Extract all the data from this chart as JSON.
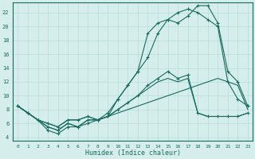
{
  "title": "",
  "xlabel": "Humidex (Indice chaleur)",
  "ylabel": "",
  "xlim": [
    -0.5,
    23.5
  ],
  "ylim": [
    3.5,
    23.5
  ],
  "yticks": [
    4,
    6,
    8,
    10,
    12,
    14,
    16,
    18,
    20,
    22
  ],
  "xticks": [
    0,
    1,
    2,
    3,
    4,
    5,
    6,
    7,
    8,
    9,
    10,
    11,
    12,
    13,
    14,
    15,
    16,
    17,
    18,
    19,
    20,
    21,
    22,
    23
  ],
  "bg_color": "#d5eeeb",
  "line_color": "#1a6b60",
  "grid_color": "#b8ddd9",
  "series1_x": [
    0,
    1,
    2,
    3,
    4,
    5,
    6,
    7,
    8,
    9,
    10,
    11,
    12,
    13,
    14,
    15,
    16,
    17,
    18,
    19,
    20,
    21,
    22,
    23
  ],
  "series1_y": [
    8.5,
    7.5,
    6.5,
    6.0,
    5.5,
    6.5,
    6.5,
    7.0,
    6.5,
    7.0,
    7.5,
    8.0,
    8.5,
    9.0,
    9.5,
    10.0,
    10.5,
    11.0,
    11.5,
    12.0,
    12.5,
    12.0,
    11.5,
    8.0
  ],
  "series2_x": [
    0,
    1,
    2,
    3,
    4,
    5,
    6,
    7,
    8,
    9,
    10,
    11,
    12,
    13,
    14,
    15,
    16,
    17,
    18,
    19,
    20,
    21,
    22,
    23
  ],
  "series2_y": [
    8.5,
    7.5,
    6.5,
    6.0,
    5.5,
    6.5,
    6.5,
    7.0,
    6.5,
    7.5,
    9.5,
    11.5,
    13.5,
    19.0,
    20.5,
    21.0,
    20.5,
    21.5,
    23.0,
    23.0,
    20.5,
    13.5,
    12.0,
    8.5
  ],
  "series3_x": [
    0,
    1,
    2,
    3,
    4,
    5,
    6,
    7,
    8,
    9,
    10,
    11,
    12,
    13,
    14,
    15,
    16,
    17,
    18,
    19,
    20,
    21,
    22,
    23
  ],
  "series3_y": [
    8.5,
    7.5,
    6.5,
    5.0,
    4.5,
    5.5,
    5.5,
    6.0,
    6.5,
    7.0,
    9.5,
    11.5,
    13.5,
    15.5,
    19.0,
    21.0,
    22.0,
    22.5,
    22.0,
    21.0,
    20.0,
    12.0,
    9.5,
    8.5
  ],
  "series4_x": [
    0,
    1,
    2,
    3,
    4,
    5,
    6,
    7,
    8,
    9,
    10,
    11,
    12,
    13,
    14,
    15,
    16,
    17,
    18,
    19,
    20,
    21,
    22,
    23
  ],
  "series4_y": [
    8.5,
    7.5,
    6.5,
    5.5,
    5.0,
    6.0,
    5.5,
    6.5,
    6.5,
    7.0,
    8.0,
    9.0,
    10.0,
    11.5,
    12.5,
    13.5,
    12.5,
    13.0,
    7.5,
    7.0,
    7.0,
    7.0,
    7.0,
    7.5
  ],
  "series5_x": [
    0,
    1,
    2,
    3,
    4,
    5,
    6,
    7,
    8,
    9,
    10,
    11,
    12,
    13,
    14,
    15,
    16,
    17,
    18,
    19,
    20,
    21,
    22,
    23
  ],
  "series5_y": [
    8.5,
    7.5,
    6.5,
    5.5,
    5.0,
    6.0,
    5.5,
    6.5,
    6.5,
    7.0,
    8.0,
    9.0,
    10.0,
    11.0,
    12.0,
    12.5,
    12.0,
    12.5,
    7.5,
    7.0,
    7.0,
    7.0,
    7.0,
    7.5
  ]
}
